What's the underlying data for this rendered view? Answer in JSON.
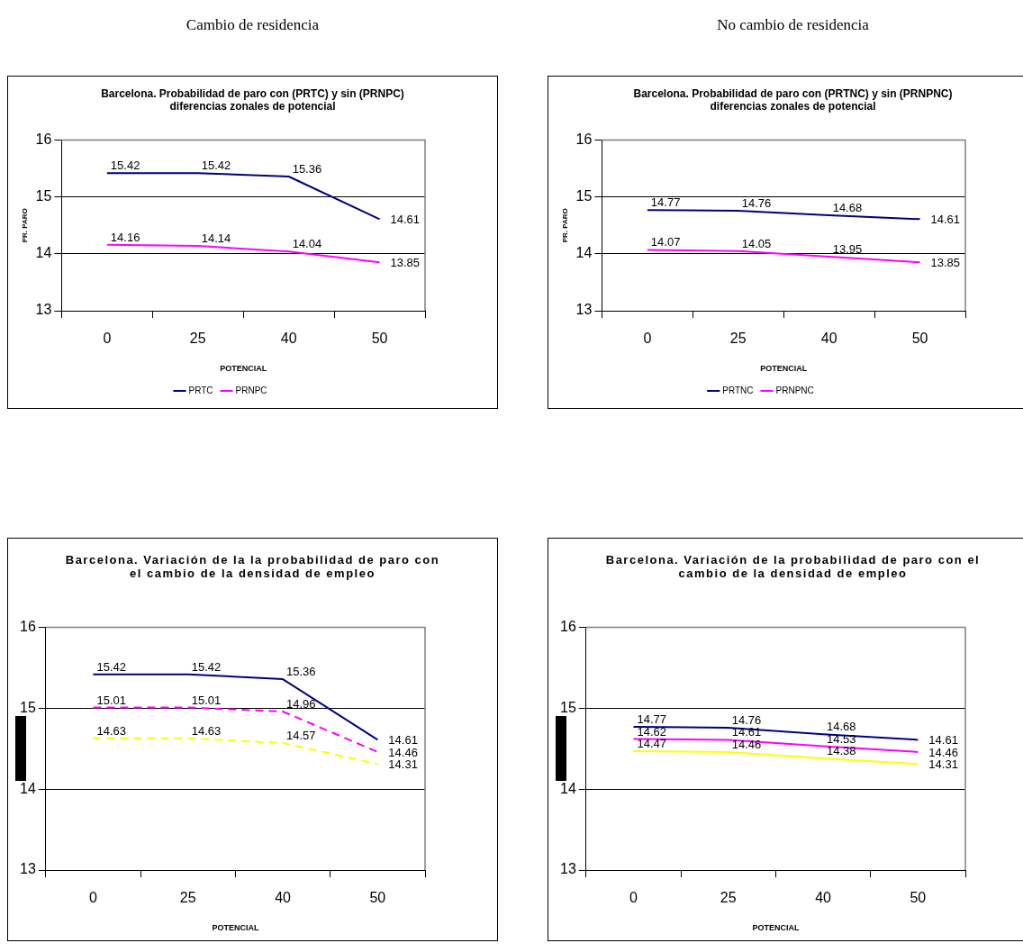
{
  "chart_data": [
    {
      "type": "line",
      "subtitle": "Cambio de residencia",
      "title": "Barcelona. Probabilidad de paro con (PRTC) y sin (PRNPC) diferencias zonales de potencial",
      "xlabel": "POTENCIAL",
      "ylabel": "PR. PARO",
      "categories": [
        "0",
        "25",
        "40",
        "50"
      ],
      "ylim": [
        13,
        16
      ],
      "yticks": [
        13,
        14,
        15,
        16
      ],
      "grid": "y",
      "legend": "bottom",
      "marker": "none",
      "data_labels": true,
      "series": [
        {
          "name": "PRTC",
          "color": "#000080",
          "values": [
            15.42,
            15.42,
            15.36,
            14.61
          ]
        },
        {
          "name": "PRNPC",
          "color": "#ff00ff",
          "values": [
            14.16,
            14.14,
            14.04,
            13.85
          ]
        }
      ]
    },
    {
      "type": "line",
      "subtitle": "No cambio de residencia",
      "title": "Barcelona. Probabilidad de paro con (PRTNC) y sin (PRNPNC) diferencias zonales de potencial",
      "xlabel": "POTENCIAL",
      "ylabel": "PR. PARO",
      "categories": [
        "0",
        "25",
        "40",
        "50"
      ],
      "ylim": [
        13,
        16
      ],
      "yticks": [
        13,
        14,
        15,
        16
      ],
      "grid": "y",
      "legend": "bottom",
      "marker": "none",
      "data_labels": true,
      "series": [
        {
          "name": "PRTNC",
          "color": "#000080",
          "values": [
            14.77,
            14.76,
            14.68,
            14.61
          ]
        },
        {
          "name": "PRNPNC",
          "color": "#ff00ff",
          "values": [
            14.07,
            14.05,
            13.95,
            13.85
          ]
        }
      ]
    },
    {
      "type": "line",
      "title": "Barcelona. Variación de la la probabilidad de paro con el  cambio de la densidad de empleo",
      "xlabel": "POTENCIAL",
      "categories": [
        "0",
        "25",
        "40",
        "50"
      ],
      "ylim": [
        13,
        16
      ],
      "yticks": [
        13,
        14,
        15,
        16
      ],
      "grid": "y",
      "marker": "none",
      "data_labels": true,
      "series": [
        {
          "color": "#000080",
          "line_style": "solid",
          "values": [
            15.42,
            15.42,
            15.36,
            14.61
          ]
        },
        {
          "color": "#ff00ff",
          "line_style": "dashed",
          "values": [
            15.01,
            15.01,
            14.96,
            14.46
          ]
        },
        {
          "color": "#ffff00",
          "line_style": "dashed",
          "values": [
            14.63,
            14.63,
            14.57,
            14.31
          ]
        }
      ]
    },
    {
      "type": "line",
      "title": "Barcelona. Variación de la probabilidad de paro con el cambio de la densidad de empleo",
      "xlabel": "POTENCIAL",
      "categories": [
        "0",
        "25",
        "40",
        "50"
      ],
      "ylim": [
        13,
        16
      ],
      "yticks": [
        13,
        14,
        15,
        16
      ],
      "grid": "y",
      "marker": "none",
      "data_labels": true,
      "series": [
        {
          "color": "#000080",
          "line_style": "solid",
          "values": [
            14.77,
            14.76,
            14.68,
            14.61
          ]
        },
        {
          "color": "#ff00ff",
          "line_style": "solid",
          "values": [
            14.62,
            14.61,
            14.53,
            14.46
          ]
        },
        {
          "color": "#ffff00",
          "line_style": "solid",
          "values": [
            14.47,
            14.46,
            14.38,
            14.31
          ]
        }
      ]
    }
  ]
}
